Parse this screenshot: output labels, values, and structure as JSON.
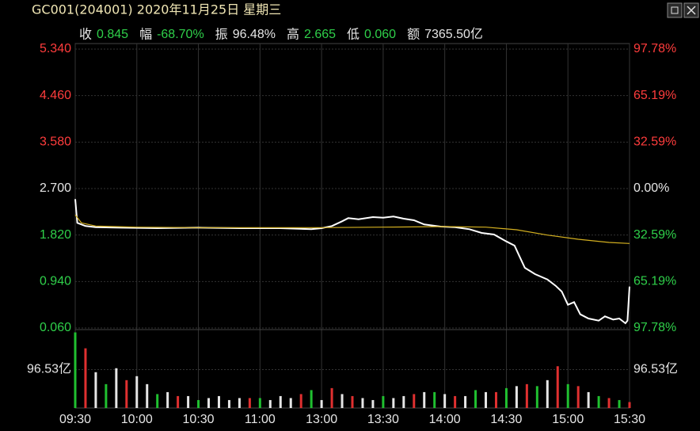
{
  "chart_data": [
    {
      "type": "line",
      "title": "GC001(204001) 2020年11月25日 星期三",
      "title_color": "#f0e6b4",
      "annotations": [
        {
          "label": "收",
          "value": "0.845",
          "color": "#2fd04a"
        },
        {
          "label": "幅",
          "value": "-68.70%",
          "color": "#2fd04a"
        },
        {
          "label": "振",
          "value": "96.48%",
          "color": "#e6e6e6"
        },
        {
          "label": "高",
          "value": "2.665",
          "color": "#2fd04a"
        },
        {
          "label": "低",
          "value": "0.060",
          "color": "#2fd04a"
        },
        {
          "label": "额",
          "value": "7365.50亿",
          "color": "#e6e6e6"
        }
      ],
      "xlim": [
        0,
        270
      ],
      "xticks": [
        {
          "value": 0,
          "label": "09:30"
        },
        {
          "value": 30,
          "label": "10:00"
        },
        {
          "value": 60,
          "label": "10:30"
        },
        {
          "value": 90,
          "label": "11:00"
        },
        {
          "value": 120,
          "label": "13:00"
        },
        {
          "value": 150,
          "label": "13:30"
        },
        {
          "value": 180,
          "label": "14:00"
        },
        {
          "value": 210,
          "label": "14:30"
        },
        {
          "value": 240,
          "label": "15:00"
        },
        {
          "value": 270,
          "label": "15:30"
        }
      ],
      "ylim": [
        0.06,
        5.34
      ],
      "yticks": [
        {
          "value": 5.34,
          "label": "5.340"
        },
        {
          "value": 4.46,
          "label": "4.460"
        },
        {
          "value": 3.58,
          "label": "3.580"
        },
        {
          "value": 2.7,
          "label": "2.700"
        },
        {
          "value": 1.82,
          "label": "1.820"
        },
        {
          "value": 0.94,
          "label": "0.940"
        },
        {
          "value": 0.06,
          "label": "0.060"
        }
      ],
      "y2lim": [
        -97.78,
        97.78
      ],
      "y2ticks": [
        {
          "value": 97.78,
          "label": "97.78%"
        },
        {
          "value": 65.19,
          "label": "65.19%"
        },
        {
          "value": 32.59,
          "label": "32.59%"
        },
        {
          "value": 0,
          "label": "0.00%"
        },
        {
          "value": -32.59,
          "label": "32.59%"
        },
        {
          "value": -65.19,
          "label": "65.19%"
        },
        {
          "value": -97.78,
          "label": "97.78%"
        }
      ],
      "grid": true,
      "series": [
        {
          "color": "#ffffff",
          "x": [
            0,
            1,
            5,
            10,
            20,
            40,
            60,
            80,
            100,
            115,
            120,
            125,
            130,
            133,
            138,
            145,
            150,
            155,
            160,
            165,
            170,
            178,
            185,
            192,
            198,
            204,
            210,
            214,
            216,
            219,
            224,
            230,
            234,
            237,
            240,
            243,
            246,
            250,
            255,
            258,
            262,
            265,
            268,
            269,
            270
          ],
          "values": [
            2.5,
            2.05,
            1.99,
            1.97,
            1.96,
            1.95,
            1.96,
            1.95,
            1.95,
            1.93,
            1.95,
            1.99,
            2.08,
            2.14,
            2.12,
            2.16,
            2.15,
            2.17,
            2.13,
            2.1,
            2.02,
            1.98,
            1.97,
            1.93,
            1.86,
            1.83,
            1.7,
            1.62,
            1.45,
            1.2,
            1.08,
            0.98,
            0.86,
            0.75,
            0.5,
            0.55,
            0.32,
            0.24,
            0.2,
            0.28,
            0.22,
            0.24,
            0.15,
            0.2,
            0.845
          ]
        },
        {
          "color": "#d4b020",
          "x": [
            0,
            3,
            10,
            30,
            60,
            90,
            120,
            150,
            180,
            200,
            215,
            230,
            245,
            260,
            270
          ],
          "values": [
            2.2,
            2.05,
            1.99,
            1.97,
            1.96,
            1.96,
            1.96,
            1.97,
            1.98,
            1.97,
            1.92,
            1.82,
            1.74,
            1.68,
            1.66
          ]
        }
      ]
    },
    {
      "type": "bar",
      "xlim": [
        0,
        270
      ],
      "ylim": [
        0,
        193.06
      ],
      "yticks": [
        {
          "value": 96.53,
          "label": "96.53亿"
        }
      ],
      "series": [
        {
          "color": "#20c030",
          "x": [
            0,
            15,
            40,
            60,
            90,
            115,
            150,
            175,
            195,
            210,
            225,
            240,
            255,
            265
          ],
          "values": [
            190,
            60,
            35,
            20,
            25,
            45,
            30,
            40,
            45,
            50,
            55,
            60,
            30,
            20
          ]
        },
        {
          "color": "#e03030",
          "x": [
            5,
            25,
            50,
            85,
            110,
            125,
            135,
            165,
            185,
            205,
            220,
            235,
            245,
            260,
            270
          ],
          "values": [
            150,
            70,
            30,
            25,
            35,
            50,
            30,
            35,
            30,
            40,
            60,
            105,
            55,
            25,
            15
          ]
        },
        {
          "color": "#e6e6e6",
          "x": [
            10,
            20,
            30,
            35,
            45,
            55,
            65,
            70,
            75,
            80,
            95,
            100,
            105,
            120,
            130,
            140,
            145,
            155,
            160,
            170,
            180,
            190,
            200,
            215,
            230,
            250
          ],
          "values": [
            90,
            100,
            80,
            60,
            40,
            30,
            25,
            30,
            20,
            25,
            20,
            30,
            25,
            20,
            35,
            25,
            20,
            25,
            30,
            40,
            35,
            30,
            40,
            55,
            70,
            40
          ]
        }
      ]
    }
  ]
}
